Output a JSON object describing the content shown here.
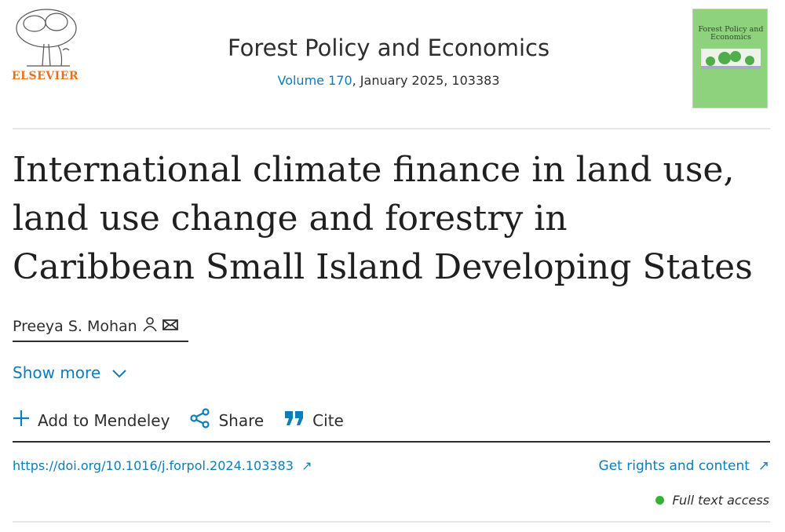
{
  "header": {
    "publisher_logo_text": "ELSEVIER",
    "journal_title": "Forest Policy and Economics",
    "volume_link": "Volume 170",
    "issue_info": ", January 2025, 103383",
    "cover_title": "Forest Policy and Economics"
  },
  "article": {
    "title": "International climate finance in land use, land use change and forestry in Caribbean Small Island Developing States",
    "author": "Preeya S. Mohan",
    "show_more": "Show more"
  },
  "actions": {
    "mendeley": "Add to Mendeley",
    "share": "Share",
    "cite": "Cite"
  },
  "links": {
    "doi": "https://doi.org/10.1016/j.forpol.2024.103383",
    "rights": "Get rights and content",
    "access": "Full text access"
  },
  "colors": {
    "link": "#0c7dbb",
    "elsevier": "#e9711c",
    "access_dot": "#34b233",
    "cover": "#8fd27e"
  }
}
